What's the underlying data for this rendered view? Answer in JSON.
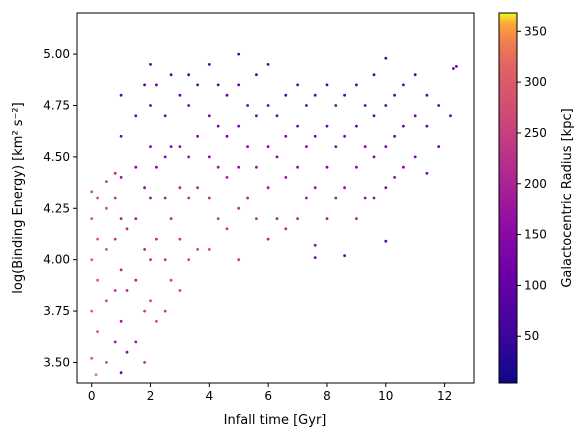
{
  "chart_data": {
    "type": "scatter",
    "title": "",
    "xlabel": "Infall time [Gyr]",
    "ylabel": "log(Binding Energy) [km² s⁻²]",
    "xlim": [
      -0.5,
      13.0
    ],
    "ylim": [
      3.4,
      5.2
    ],
    "xticks": [
      0,
      2,
      4,
      6,
      8,
      10,
      12
    ],
    "yticks": [
      3.5,
      3.75,
      4.0,
      4.25,
      4.5,
      4.75,
      5.0
    ],
    "xtick_labels": [
      "0",
      "2",
      "4",
      "6",
      "8",
      "10",
      "12"
    ],
    "ytick_labels": [
      "3.50",
      "3.75",
      "4.00",
      "4.25",
      "4.50",
      "4.75",
      "5.00"
    ],
    "grid": false,
    "colormap": "plasma",
    "colorbar": {
      "label": "Galactocentric Radius [kpc]",
      "range": [
        4,
        368
      ],
      "ticks": [
        50,
        100,
        150,
        200,
        250,
        300,
        350
      ],
      "tick_labels": [
        "50",
        "100",
        "150",
        "200",
        "250",
        "300",
        "350"
      ]
    },
    "points_xyc": [
      [
        0.0,
        3.52,
        300
      ],
      [
        0.0,
        3.75,
        310
      ],
      [
        0.0,
        4.0,
        315
      ],
      [
        0.0,
        4.2,
        300
      ],
      [
        0.0,
        4.33,
        280
      ],
      [
        0.15,
        3.44,
        330
      ],
      [
        0.2,
        3.65,
        300
      ],
      [
        0.2,
        3.9,
        305
      ],
      [
        0.2,
        4.1,
        295
      ],
      [
        0.2,
        4.3,
        290
      ],
      [
        0.5,
        3.5,
        260
      ],
      [
        0.5,
        3.8,
        270
      ],
      [
        0.5,
        4.05,
        280
      ],
      [
        0.5,
        4.25,
        270
      ],
      [
        0.5,
        4.38,
        250
      ],
      [
        0.8,
        3.6,
        180
      ],
      [
        0.8,
        3.85,
        230
      ],
      [
        0.8,
        4.1,
        240
      ],
      [
        0.8,
        4.3,
        230
      ],
      [
        0.8,
        4.42,
        210
      ],
      [
        1.0,
        3.45,
        120
      ],
      [
        1.0,
        3.7,
        180
      ],
      [
        1.0,
        3.95,
        200
      ],
      [
        1.0,
        4.2,
        190
      ],
      [
        1.0,
        4.4,
        170
      ],
      [
        1.0,
        4.6,
        120
      ],
      [
        1.0,
        4.8,
        100
      ],
      [
        1.2,
        3.55,
        150
      ],
      [
        1.2,
        3.85,
        210
      ],
      [
        1.2,
        4.15,
        220
      ],
      [
        1.5,
        3.6,
        170
      ],
      [
        1.5,
        3.9,
        200
      ],
      [
        1.5,
        4.2,
        180
      ],
      [
        1.5,
        4.45,
        150
      ],
      [
        1.5,
        4.7,
        110
      ],
      [
        1.8,
        3.5,
        230
      ],
      [
        1.8,
        3.75,
        250
      ],
      [
        1.8,
        4.05,
        200
      ],
      [
        1.8,
        4.35,
        160
      ],
      [
        1.8,
        4.85,
        90
      ],
      [
        2.0,
        3.8,
        260
      ],
      [
        2.0,
        4.0,
        230
      ],
      [
        2.0,
        4.3,
        170
      ],
      [
        2.0,
        4.55,
        130
      ],
      [
        2.0,
        4.75,
        100
      ],
      [
        2.0,
        4.95,
        80
      ],
      [
        2.2,
        3.7,
        270
      ],
      [
        2.2,
        4.1,
        220
      ],
      [
        2.2,
        4.45,
        140
      ],
      [
        2.2,
        4.85,
        90
      ],
      [
        2.5,
        3.75,
        250
      ],
      [
        2.5,
        4.0,
        240
      ],
      [
        2.5,
        4.3,
        200
      ],
      [
        2.5,
        4.5,
        150
      ],
      [
        2.5,
        4.7,
        120
      ],
      [
        2.7,
        3.9,
        260
      ],
      [
        2.7,
        4.2,
        210
      ],
      [
        2.7,
        4.55,
        140
      ],
      [
        2.7,
        4.9,
        90
      ],
      [
        3.0,
        3.85,
        250
      ],
      [
        3.0,
        4.1,
        240
      ],
      [
        3.0,
        4.35,
        200
      ],
      [
        3.0,
        4.55,
        150
      ],
      [
        3.0,
        4.8,
        110
      ],
      [
        3.3,
        4.0,
        270
      ],
      [
        3.3,
        4.3,
        230
      ],
      [
        3.3,
        4.5,
        170
      ],
      [
        3.3,
        4.75,
        120
      ],
      [
        3.3,
        4.9,
        90
      ],
      [
        3.6,
        4.05,
        260
      ],
      [
        3.6,
        4.35,
        210
      ],
      [
        3.6,
        4.6,
        140
      ],
      [
        3.6,
        4.85,
        100
      ],
      [
        4.0,
        4.05,
        260
      ],
      [
        4.0,
        4.3,
        220
      ],
      [
        4.0,
        4.5,
        160
      ],
      [
        4.0,
        4.7,
        120
      ],
      [
        4.0,
        4.95,
        90
      ],
      [
        4.3,
        4.2,
        240
      ],
      [
        4.3,
        4.45,
        180
      ],
      [
        4.3,
        4.65,
        130
      ],
      [
        4.3,
        4.85,
        90
      ],
      [
        4.6,
        4.15,
        230
      ],
      [
        4.6,
        4.4,
        180
      ],
      [
        4.6,
        4.6,
        130
      ],
      [
        4.6,
        4.8,
        100
      ],
      [
        5.0,
        4.0,
        250
      ],
      [
        5.0,
        4.25,
        210
      ],
      [
        5.0,
        4.45,
        160
      ],
      [
        5.0,
        4.65,
        120
      ],
      [
        5.0,
        4.85,
        90
      ],
      [
        5.0,
        5.0,
        70
      ],
      [
        5.3,
        4.3,
        200
      ],
      [
        5.3,
        4.55,
        140
      ],
      [
        5.3,
        4.75,
        110
      ],
      [
        5.6,
        4.2,
        220
      ],
      [
        5.6,
        4.45,
        170
      ],
      [
        5.6,
        4.7,
        120
      ],
      [
        5.6,
        4.9,
        90
      ],
      [
        6.0,
        4.1,
        210
      ],
      [
        6.0,
        4.35,
        180
      ],
      [
        6.0,
        4.55,
        140
      ],
      [
        6.0,
        4.75,
        100
      ],
      [
        6.0,
        4.95,
        80
      ],
      [
        6.3,
        4.2,
        200
      ],
      [
        6.3,
        4.5,
        150
      ],
      [
        6.3,
        4.7,
        110
      ],
      [
        6.6,
        4.15,
        210
      ],
      [
        6.6,
        4.4,
        170
      ],
      [
        6.6,
        4.6,
        130
      ],
      [
        6.6,
        4.8,
        90
      ],
      [
        7.0,
        4.2,
        200
      ],
      [
        7.0,
        4.45,
        160
      ],
      [
        7.0,
        4.65,
        120
      ],
      [
        7.0,
        4.85,
        90
      ],
      [
        7.3,
        4.3,
        180
      ],
      [
        7.3,
        4.55,
        140
      ],
      [
        7.3,
        4.75,
        100
      ],
      [
        7.6,
        4.01,
        120
      ],
      [
        7.6,
        4.07,
        150
      ],
      [
        7.6,
        4.35,
        170
      ],
      [
        7.6,
        4.6,
        130
      ],
      [
        7.6,
        4.8,
        90
      ],
      [
        8.0,
        4.2,
        190
      ],
      [
        8.0,
        4.45,
        150
      ],
      [
        8.0,
        4.65,
        110
      ],
      [
        8.0,
        4.85,
        80
      ],
      [
        8.3,
        4.3,
        180
      ],
      [
        8.3,
        4.55,
        140
      ],
      [
        8.3,
        4.75,
        100
      ],
      [
        8.6,
        4.02,
        90
      ],
      [
        8.6,
        4.35,
        170
      ],
      [
        8.6,
        4.6,
        130
      ],
      [
        8.6,
        4.8,
        90
      ],
      [
        9.0,
        4.2,
        190
      ],
      [
        9.0,
        4.45,
        150
      ],
      [
        9.0,
        4.65,
        110
      ],
      [
        9.0,
        4.85,
        80
      ],
      [
        9.3,
        4.3,
        160
      ],
      [
        9.3,
        4.55,
        130
      ],
      [
        9.3,
        4.75,
        100
      ],
      [
        9.6,
        4.3,
        170
      ],
      [
        9.6,
        4.5,
        140
      ],
      [
        9.6,
        4.7,
        110
      ],
      [
        9.6,
        4.9,
        80
      ],
      [
        10.0,
        4.09,
        90
      ],
      [
        10.0,
        4.35,
        150
      ],
      [
        10.0,
        4.55,
        120
      ],
      [
        10.0,
        4.75,
        90
      ],
      [
        10.0,
        4.98,
        70
      ],
      [
        10.3,
        4.4,
        150
      ],
      [
        10.3,
        4.6,
        110
      ],
      [
        10.3,
        4.8,
        80
      ],
      [
        10.6,
        4.45,
        140
      ],
      [
        10.6,
        4.65,
        110
      ],
      [
        10.6,
        4.85,
        80
      ],
      [
        11.0,
        4.5,
        130
      ],
      [
        11.0,
        4.7,
        100
      ],
      [
        11.0,
        4.9,
        80
      ],
      [
        11.4,
        4.42,
        120
      ],
      [
        11.4,
        4.65,
        110
      ],
      [
        11.4,
        4.8,
        90
      ],
      [
        11.8,
        4.55,
        110
      ],
      [
        11.8,
        4.75,
        90
      ],
      [
        12.2,
        4.7,
        100
      ],
      [
        12.3,
        4.93,
        80
      ],
      [
        12.4,
        4.94,
        80
      ]
    ]
  }
}
